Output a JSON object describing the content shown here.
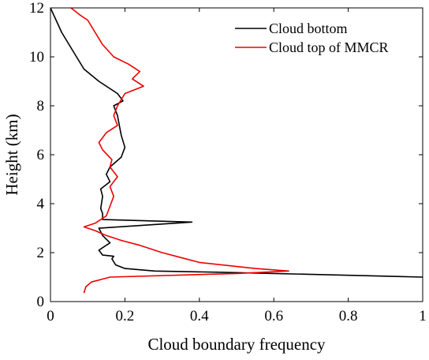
{
  "chart_data": {
    "type": "line",
    "title": "",
    "xlabel": "Cloud boundary frequency",
    "ylabel": "Height (km)",
    "xlim": [
      0,
      1
    ],
    "ylim": [
      0,
      12
    ],
    "xticks": [
      0,
      0.2,
      0.4,
      0.6,
      0.8,
      1
    ],
    "xtick_labels": [
      "0",
      "0.2",
      "0.4",
      "0.6",
      "0.8",
      "1"
    ],
    "yticks": [
      0,
      2,
      4,
      6,
      8,
      10,
      12
    ],
    "ytick_labels": [
      "0",
      "2",
      "4",
      "6",
      "8",
      "10",
      "12"
    ],
    "grid": false,
    "legend_position": "top-right",
    "series": [
      {
        "name": "Cloud bottom",
        "color": "#000000",
        "points": [
          [
            1.0,
            1.0
          ],
          [
            0.6,
            1.15
          ],
          [
            0.45,
            1.2
          ],
          [
            0.28,
            1.25
          ],
          [
            0.2,
            1.35
          ],
          [
            0.175,
            1.5
          ],
          [
            0.165,
            1.75
          ],
          [
            0.17,
            1.85
          ],
          [
            0.14,
            1.9
          ],
          [
            0.13,
            2.1
          ],
          [
            0.16,
            2.4
          ],
          [
            0.14,
            2.7
          ],
          [
            0.13,
            3.0
          ],
          [
            0.38,
            3.25
          ],
          [
            0.14,
            3.35
          ],
          [
            0.14,
            3.6
          ],
          [
            0.135,
            3.8
          ],
          [
            0.14,
            4.3
          ],
          [
            0.135,
            4.6
          ],
          [
            0.16,
            4.9
          ],
          [
            0.15,
            5.2
          ],
          [
            0.16,
            5.5
          ],
          [
            0.19,
            5.9
          ],
          [
            0.2,
            6.3
          ],
          [
            0.19,
            6.8
          ],
          [
            0.185,
            7.2
          ],
          [
            0.18,
            7.6
          ],
          [
            0.17,
            8.0
          ],
          [
            0.195,
            8.2
          ],
          [
            0.18,
            8.5
          ],
          [
            0.13,
            9.0
          ],
          [
            0.09,
            9.5
          ],
          [
            0.07,
            10.0
          ],
          [
            0.05,
            10.5
          ],
          [
            0.03,
            11.0
          ],
          [
            0.015,
            11.5
          ],
          [
            0.0,
            12.0
          ]
        ]
      },
      {
        "name": "Cloud top of MMCR",
        "color": "#ee0000",
        "points": [
          [
            0.09,
            0.35
          ],
          [
            0.095,
            0.6
          ],
          [
            0.11,
            0.8
          ],
          [
            0.16,
            1.0
          ],
          [
            0.5,
            1.15
          ],
          [
            0.64,
            1.25
          ],
          [
            0.55,
            1.35
          ],
          [
            0.4,
            1.6
          ],
          [
            0.35,
            1.8
          ],
          [
            0.3,
            2.0
          ],
          [
            0.24,
            2.3
          ],
          [
            0.19,
            2.5
          ],
          [
            0.15,
            2.7
          ],
          [
            0.12,
            2.9
          ],
          [
            0.09,
            3.05
          ],
          [
            0.12,
            3.2
          ],
          [
            0.15,
            3.5
          ],
          [
            0.16,
            3.9
          ],
          [
            0.17,
            4.3
          ],
          [
            0.16,
            4.7
          ],
          [
            0.18,
            5.1
          ],
          [
            0.16,
            5.5
          ],
          [
            0.165,
            5.8
          ],
          [
            0.14,
            6.2
          ],
          [
            0.13,
            6.5
          ],
          [
            0.15,
            6.9
          ],
          [
            0.18,
            7.2
          ],
          [
            0.17,
            7.6
          ],
          [
            0.18,
            8.0
          ],
          [
            0.2,
            8.5
          ],
          [
            0.25,
            8.8
          ],
          [
            0.22,
            9.1
          ],
          [
            0.24,
            9.4
          ],
          [
            0.21,
            9.7
          ],
          [
            0.17,
            10.0
          ],
          [
            0.14,
            10.5
          ],
          [
            0.12,
            11.0
          ],
          [
            0.1,
            11.5
          ],
          [
            0.08,
            11.7
          ],
          [
            0.055,
            12.0
          ]
        ]
      }
    ]
  }
}
